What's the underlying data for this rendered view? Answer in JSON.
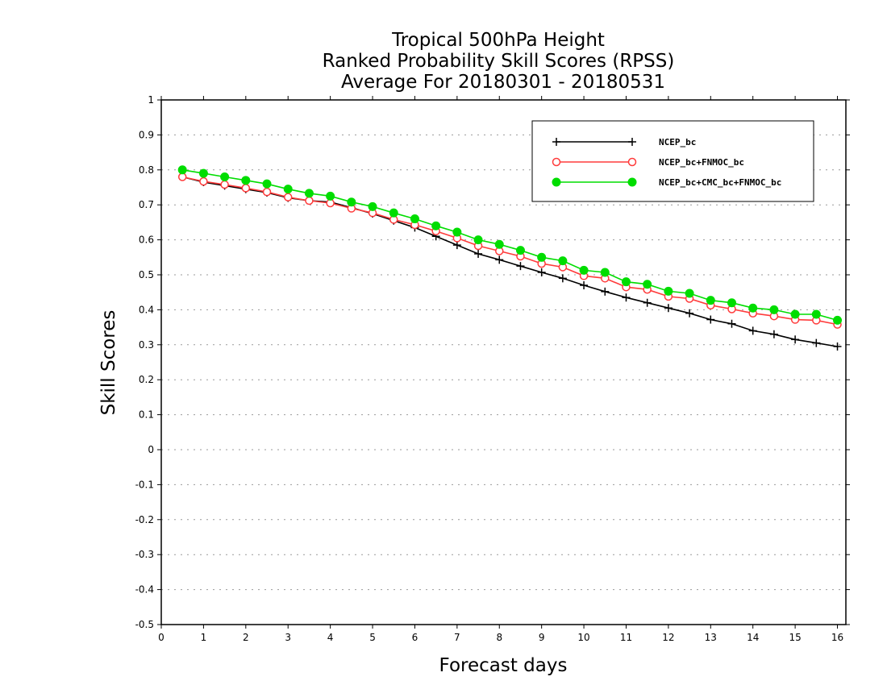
{
  "chart_data": {
    "type": "line",
    "title_lines": [
      "Tropical 500hPa Height",
      "Ranked Probability Skill Scores (RPSS)",
      "Average For 20180301 - 20180531"
    ],
    "xlabel": "Forecast days",
    "ylabel": "Skill Scores",
    "xlim": [
      0,
      16.2
    ],
    "ylim": [
      -0.5,
      1
    ],
    "xticks": [
      0,
      1,
      2,
      3,
      4,
      5,
      6,
      7,
      8,
      9,
      10,
      11,
      12,
      13,
      14,
      15,
      16
    ],
    "yticks": [
      -0.5,
      -0.4,
      -0.3,
      -0.2,
      -0.1,
      0,
      0.1,
      0.2,
      0.3,
      0.4,
      0.5,
      0.6,
      0.7,
      0.8,
      0.9,
      1
    ],
    "ytick_labels": [
      "-0.5",
      "-0.4",
      "-0.3",
      "-0.2",
      "-0.1",
      "0",
      "0.1",
      "0.2",
      "0.3",
      "0.4",
      "0.5",
      "0.6",
      "0.7",
      "0.8",
      "0.9",
      "1"
    ],
    "grid": "dotted horizontal",
    "legend_position": "top-right",
    "x": [
      0.5,
      1,
      1.5,
      2,
      2.5,
      3,
      3.5,
      4,
      4.5,
      5,
      5.5,
      6,
      6.5,
      7,
      7.5,
      8,
      8.5,
      9,
      9.5,
      10,
      10.5,
      11,
      11.5,
      12,
      12.5,
      13,
      13.5,
      14,
      14.5,
      15,
      15.5,
      16
    ],
    "series": [
      {
        "name": "NCEP_bc",
        "color": "#000000",
        "marker": "plus",
        "values": [
          0.78,
          0.765,
          0.755,
          0.745,
          0.735,
          0.72,
          0.712,
          0.708,
          0.692,
          0.675,
          0.655,
          0.635,
          0.61,
          0.585,
          0.56,
          0.543,
          0.525,
          0.507,
          0.49,
          0.47,
          0.452,
          0.435,
          0.42,
          0.405,
          0.39,
          0.372,
          0.36,
          0.34,
          0.33,
          0.315,
          0.305,
          0.295
        ]
      },
      {
        "name": "NCEP_bc+FNMOC_bc",
        "color": "#ff3b3b",
        "marker": "open-circle",
        "values": [
          0.78,
          0.767,
          0.758,
          0.748,
          0.737,
          0.722,
          0.712,
          0.705,
          0.69,
          0.677,
          0.658,
          0.643,
          0.625,
          0.605,
          0.583,
          0.568,
          0.553,
          0.532,
          0.522,
          0.497,
          0.49,
          0.465,
          0.458,
          0.438,
          0.432,
          0.413,
          0.402,
          0.39,
          0.382,
          0.372,
          0.37,
          0.358
        ]
      },
      {
        "name": "NCEP_bc+CMC_bc+FNMOC_bc",
        "color": "#00dd00",
        "marker": "filled-circle",
        "values": [
          0.8,
          0.79,
          0.78,
          0.77,
          0.76,
          0.745,
          0.733,
          0.725,
          0.708,
          0.695,
          0.677,
          0.66,
          0.64,
          0.622,
          0.6,
          0.587,
          0.57,
          0.55,
          0.54,
          0.513,
          0.507,
          0.48,
          0.473,
          0.453,
          0.447,
          0.427,
          0.42,
          0.405,
          0.4,
          0.387,
          0.387,
          0.37
        ]
      }
    ]
  }
}
